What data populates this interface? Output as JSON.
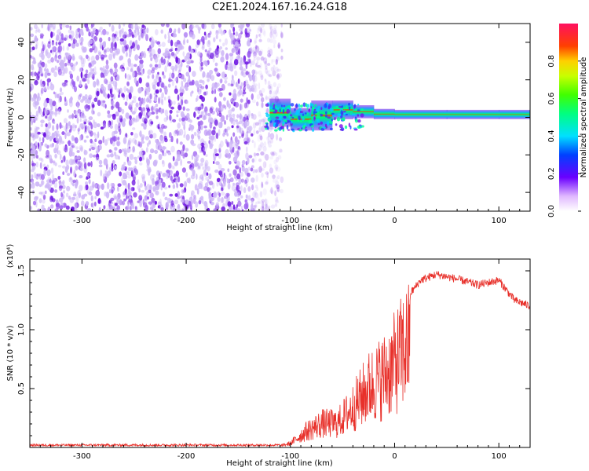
{
  "title": "C2E1.2024.167.16.24.G18",
  "colors": {
    "axis": "#000000",
    "snr_line": "#e8302a",
    "spec_light": "#cdb6f7",
    "spec_mid": "#9a5cf0",
    "spec_dark": "#6a10e0",
    "background": "#ffffff"
  },
  "chart_data": [
    {
      "type": "heatmap",
      "name": "spectrogram",
      "xlabel": "Height of straight line (km)",
      "ylabel": "Frequency (Hz)",
      "xlim": [
        -350,
        130
      ],
      "ylim": [
        -50,
        50
      ],
      "xticks": [
        -300,
        -200,
        -100,
        0,
        100
      ],
      "xtick_labels": [
        "-300",
        "-200",
        "-100",
        "0",
        "100"
      ],
      "yticks": [
        -40,
        -20,
        0,
        20,
        40
      ],
      "ytick_labels": [
        "-40",
        "-20",
        "0",
        "20",
        "40"
      ],
      "noise_region": [
        -350,
        -120
      ],
      "signal_band": [
        {
          "x": -120,
          "f": 5
        },
        {
          "x": -100,
          "f": 0
        },
        {
          "x": -80,
          "f": -2
        },
        {
          "x": -60,
          "f": 4
        },
        {
          "x": -40,
          "f": 4
        },
        {
          "x": -20,
          "f": 2
        },
        {
          "x": 0,
          "f": 1.5
        },
        {
          "x": 50,
          "f": 1.5
        },
        {
          "x": 100,
          "f": 1.5
        },
        {
          "x": 130,
          "f": 1.5
        }
      ],
      "colorbar": {
        "label": "Normalized spectral amplitude",
        "range": [
          0,
          1
        ],
        "ticks": [
          0.0,
          0.2,
          0.4,
          0.6,
          0.8
        ],
        "tick_labels": [
          "0.0",
          "0.2",
          "0.4",
          "0.6",
          "0.8"
        ]
      }
    },
    {
      "type": "line",
      "name": "snr",
      "xlabel": "Height of straight line (km)",
      "ylabel": "SNR (10 * v/v)",
      "y_multiplier": "(x10⁴)",
      "xlim": [
        -350,
        130
      ],
      "ylim": [
        0,
        1.6
      ],
      "xticks": [
        -300,
        -200,
        -100,
        0,
        100
      ],
      "xtick_labels": [
        "-300",
        "-200",
        "-100",
        "0",
        "100"
      ],
      "yticks": [
        0.5,
        1.0,
        1.5
      ],
      "ytick_labels": [
        "0.5",
        "1.0",
        "1.5"
      ],
      "envelope": [
        {
          "x": -350,
          "y": 0.02
        },
        {
          "x": -110,
          "y": 0.02
        },
        {
          "x": -100,
          "y": 0.05
        },
        {
          "x": -85,
          "y": 0.2
        },
        {
          "x": -70,
          "y": 0.3
        },
        {
          "x": -55,
          "y": 0.3
        },
        {
          "x": -40,
          "y": 0.5
        },
        {
          "x": -25,
          "y": 0.75
        },
        {
          "x": -10,
          "y": 0.9
        },
        {
          "x": 0,
          "y": 1.05
        },
        {
          "x": 10,
          "y": 1.25
        },
        {
          "x": 25,
          "y": 1.42
        },
        {
          "x": 40,
          "y": 1.47
        },
        {
          "x": 60,
          "y": 1.43
        },
        {
          "x": 80,
          "y": 1.38
        },
        {
          "x": 100,
          "y": 1.42
        },
        {
          "x": 115,
          "y": 1.25
        },
        {
          "x": 130,
          "y": 1.2
        }
      ]
    }
  ]
}
